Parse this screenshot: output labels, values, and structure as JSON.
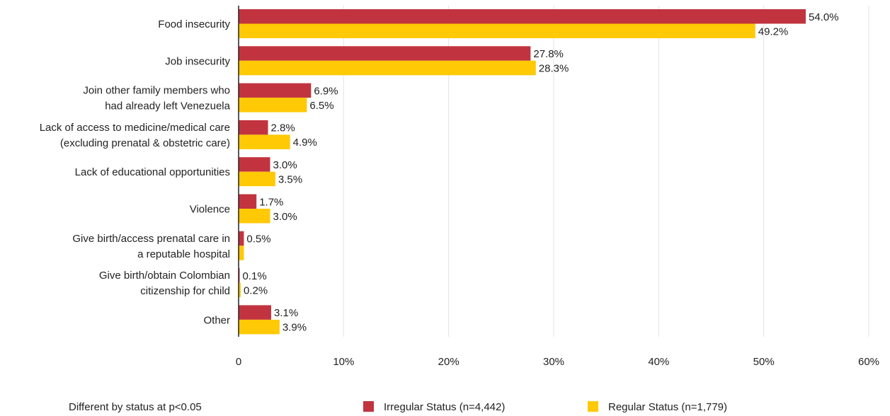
{
  "chart_data": {
    "type": "bar",
    "orientation": "horizontal",
    "categories": [
      [
        "Food insecurity"
      ],
      [
        "Job insecurity"
      ],
      [
        "Join other family members who",
        "had already left Venezuela"
      ],
      [
        "Lack of access to medicine/medical care",
        "(excluding prenatal & obstetric care)"
      ],
      [
        "Lack of educational opportunities"
      ],
      [
        "Violence"
      ],
      [
        "Give birth/access prenatal care in",
        "a reputable hospital"
      ],
      [
        "Give birth/obtain Colombian",
        "citizenship for child"
      ],
      [
        "Other"
      ]
    ],
    "series": [
      {
        "name": "Irregular Status (n=4,442)",
        "color": "#C1343F",
        "values": [
          54.0,
          27.8,
          6.9,
          2.8,
          3.0,
          1.7,
          0.5,
          0.1,
          3.1
        ],
        "labels": [
          "54.0%",
          "27.8%",
          "6.9%",
          "2.8%",
          "3.0%",
          "1.7%",
          "0.5%",
          "0.1%",
          "3.1%"
        ]
      },
      {
        "name": "Regular Status (n=1,779)",
        "color": "#FFC905",
        "values": [
          49.2,
          28.3,
          6.5,
          4.9,
          3.5,
          3.0,
          0.5,
          0.2,
          3.9
        ],
        "labels": [
          "49.2%",
          "28.3%",
          "6.5%",
          "4.9%",
          "3.5%",
          "3.0%",
          "",
          "0.2%",
          "3.9%"
        ]
      }
    ],
    "xlim": [
      0,
      60
    ],
    "x_ticks": [
      0,
      10,
      20,
      30,
      40,
      50,
      60
    ],
    "x_tick_labels": [
      "0",
      "10%",
      "20%",
      "30%",
      "40%",
      "50%",
      "60%"
    ],
    "grid": true,
    "legend_position": "bottom",
    "footnote": "Different by status at p<0.05"
  }
}
